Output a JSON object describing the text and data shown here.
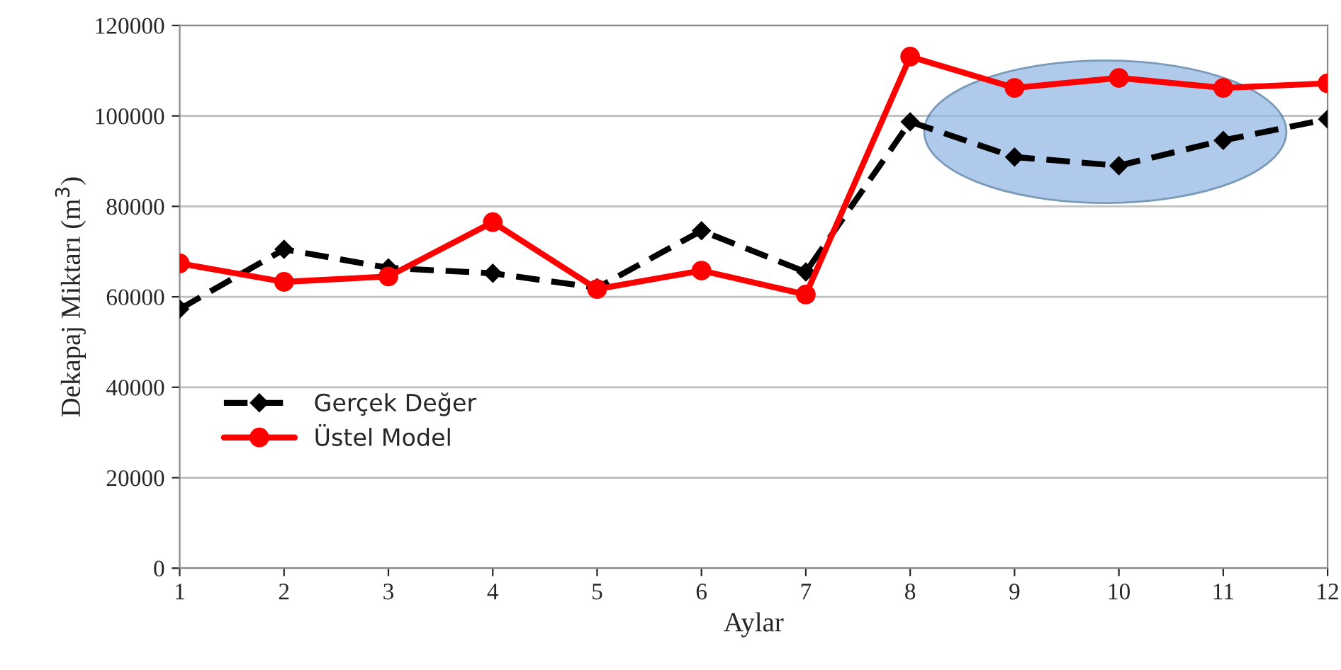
{
  "chart_data": {
    "type": "line",
    "xlabel": "Aylar",
    "ylabel": "Dekapaj Miktarı (m$^{3}$)",
    "x": [
      1,
      2,
      3,
      4,
      5,
      6,
      7,
      8,
      9,
      10,
      11,
      12
    ],
    "series": [
      {
        "name": "Gerçek Değer",
        "color": "#000000",
        "marker": "diamond",
        "line_style": "dashed",
        "values": [
          57300,
          70500,
          66400,
          65200,
          62000,
          74600,
          65500,
          98700,
          90900,
          89000,
          94600,
          99300
        ]
      },
      {
        "name": "Üstel Model",
        "color": "#ff0000",
        "marker": "circle",
        "line_style": "solid",
        "values": [
          67400,
          63300,
          64500,
          76500,
          61700,
          65800,
          60500,
          113100,
          106200,
          108400,
          106200,
          107200
        ]
      }
    ],
    "xlim": [
      1,
      12
    ],
    "xticks": [
      1,
      2,
      3,
      4,
      5,
      6,
      7,
      8,
      9,
      10,
      11,
      12
    ],
    "ylim": [
      0,
      120000
    ],
    "yticks": [
      0,
      20000,
      40000,
      60000,
      80000,
      100000,
      120000
    ],
    "grid": "y",
    "legend": "left"
  }
}
